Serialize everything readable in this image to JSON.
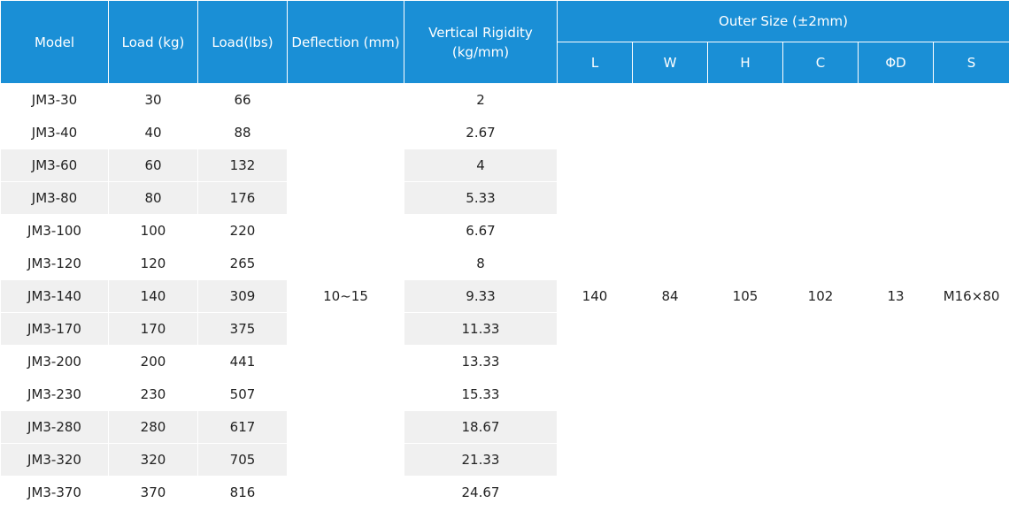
{
  "colors": {
    "header_bg": "#1a8fd6",
    "header_text": "#ffffff",
    "row_shade": "#f0f0f0"
  },
  "headers": {
    "model": "Model",
    "load_kg": "Load (kg)",
    "load_lbs": "Load(lbs)",
    "deflection": "Deflection (mm)",
    "rigidity_line1": "Vertical Rigidity",
    "rigidity_line2": "(kg/mm)",
    "outer_size": "Outer Size (±2mm)",
    "sub": {
      "L": "L",
      "W": "W",
      "H": "H",
      "C": "C",
      "D": "ΦD",
      "S": "S"
    }
  },
  "merged": {
    "deflection": "10~15",
    "L": "140",
    "W": "84",
    "H": "105",
    "C": "102",
    "D": "13",
    "S": "M16×80"
  },
  "rows": [
    {
      "model": "JM3-30",
      "kg": "30",
      "lbs": "66",
      "rigidity": "2"
    },
    {
      "model": "JM3-40",
      "kg": "40",
      "lbs": "88",
      "rigidity": "2.67"
    },
    {
      "model": "JM3-60",
      "kg": "60",
      "lbs": "132",
      "rigidity": "4"
    },
    {
      "model": "JM3-80",
      "kg": "80",
      "lbs": "176",
      "rigidity": "5.33"
    },
    {
      "model": "JM3-100",
      "kg": "100",
      "lbs": "220",
      "rigidity": "6.67"
    },
    {
      "model": "JM3-120",
      "kg": "120",
      "lbs": "265",
      "rigidity": "8"
    },
    {
      "model": "JM3-140",
      "kg": "140",
      "lbs": "309",
      "rigidity": "9.33"
    },
    {
      "model": "JM3-170",
      "kg": "170",
      "lbs": "375",
      "rigidity": "11.33"
    },
    {
      "model": "JM3-200",
      "kg": "200",
      "lbs": "441",
      "rigidity": "13.33"
    },
    {
      "model": "JM3-230",
      "kg": "230",
      "lbs": "507",
      "rigidity": "15.33"
    },
    {
      "model": "JM3-280",
      "kg": "280",
      "lbs": "617",
      "rigidity": "18.67"
    },
    {
      "model": "JM3-320",
      "kg": "320",
      "lbs": "705",
      "rigidity": "21.33"
    },
    {
      "model": "JM3-370",
      "kg": "370",
      "lbs": "816",
      "rigidity": "24.67"
    }
  ]
}
